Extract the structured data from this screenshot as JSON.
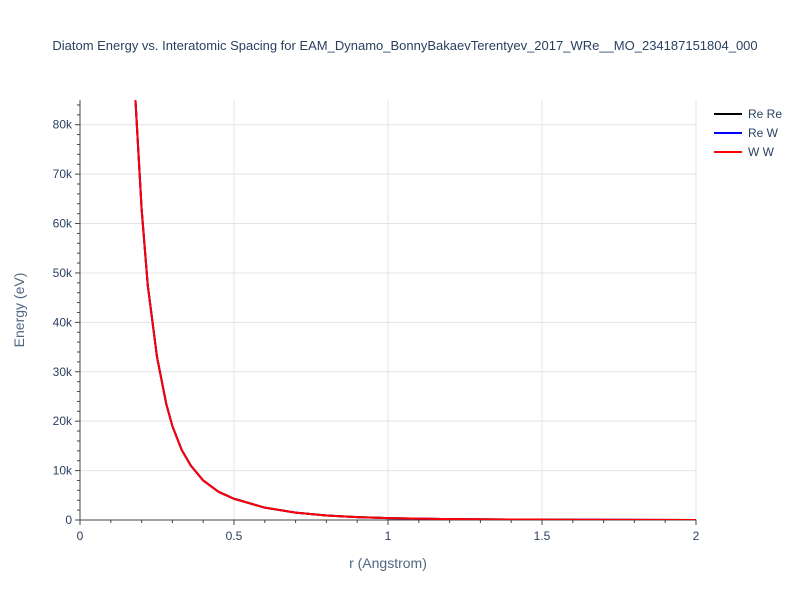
{
  "chart_data": {
    "type": "line",
    "title": "Diatom Energy vs. Interatomic Spacing for EAM_Dynamo_BonnyBakaevTerentyev_2017_WRe__MO_234187151804_000",
    "xlabel": "r (Angstrom)",
    "ylabel": "Energy (eV)",
    "xlim": [
      0,
      2
    ],
    "ylim": [
      0,
      85000
    ],
    "x_ticks": [
      {
        "value": 0,
        "label": "0"
      },
      {
        "value": 0.5,
        "label": "0.5"
      },
      {
        "value": 1,
        "label": "1"
      },
      {
        "value": 1.5,
        "label": "1.5"
      },
      {
        "value": 2,
        "label": "2"
      }
    ],
    "y_ticks": [
      {
        "value": 0,
        "label": "0"
      },
      {
        "value": 10000,
        "label": "10k"
      },
      {
        "value": 20000,
        "label": "20k"
      },
      {
        "value": 30000,
        "label": "30k"
      },
      {
        "value": 40000,
        "label": "40k"
      },
      {
        "value": 50000,
        "label": "50k"
      },
      {
        "value": 60000,
        "label": "60k"
      },
      {
        "value": 70000,
        "label": "70k"
      },
      {
        "value": 80000,
        "label": "80k"
      }
    ],
    "grid": true,
    "legend_position": "top-right",
    "x": [
      0.18,
      0.2,
      0.22,
      0.25,
      0.28,
      0.3,
      0.33,
      0.36,
      0.4,
      0.45,
      0.5,
      0.6,
      0.7,
      0.8,
      0.9,
      1.0,
      1.2,
      1.4,
      1.6,
      1.8,
      2.0
    ],
    "series": [
      {
        "name": "Re Re",
        "color": "#000000",
        "values": [
          85000,
          63000,
          47500,
          33000,
          23500,
          19000,
          14200,
          11000,
          8000,
          5700,
          4300,
          2500,
          1500,
          900,
          580,
          380,
          180,
          90,
          40,
          15,
          5
        ]
      },
      {
        "name": "Re W",
        "color": "#0000ff",
        "values": [
          85000,
          63000,
          47500,
          33000,
          23500,
          19000,
          14200,
          11000,
          8000,
          5700,
          4300,
          2500,
          1500,
          900,
          580,
          380,
          180,
          90,
          40,
          15,
          5
        ]
      },
      {
        "name": "W W",
        "color": "#ff0000",
        "values": [
          85000,
          63000,
          47500,
          33000,
          23500,
          19000,
          14200,
          11000,
          8000,
          5700,
          4300,
          2500,
          1500,
          900,
          580,
          380,
          180,
          90,
          40,
          15,
          5
        ]
      }
    ]
  }
}
